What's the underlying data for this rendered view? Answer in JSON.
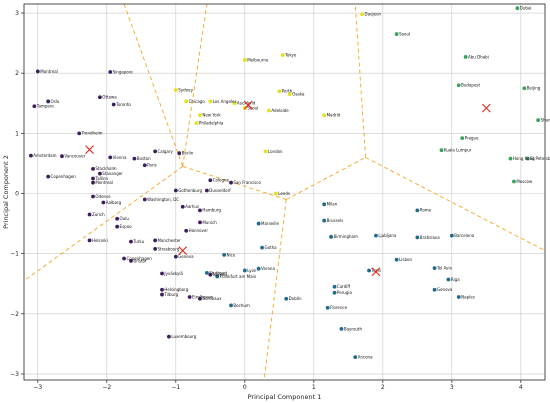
{
  "chart_data": {
    "type": "scatter",
    "xlabel": "Principal Component 1",
    "ylabel": "Principal Component 2",
    "xlim": [
      -3.2,
      4.35
    ],
    "ylim": [
      -3.1,
      3.15
    ],
    "xticks": [
      -3,
      -2,
      -1,
      0,
      1,
      2,
      3,
      4
    ],
    "yticks": [
      -3,
      -2,
      -1,
      0,
      1,
      2,
      3
    ],
    "grid": true,
    "colors": {
      "c0": "#3b1f5c",
      "c1": "#1f6b8c",
      "c2": "#e6e01c",
      "c3": "#3aa35a",
      "centroid": "#e0261c",
      "boundary": "#f5a623"
    },
    "centroids": [
      {
        "x": -2.25,
        "y": 0.73
      },
      {
        "x": -0.9,
        "y": -0.95
      },
      {
        "x": 0.05,
        "y": 1.47
      },
      {
        "x": 1.9,
        "y": -1.3
      },
      {
        "x": 3.5,
        "y": 1.42
      }
    ],
    "boundaries": [
      [
        [
          -1.75,
          3.15
        ],
        [
          -0.9,
          0.45
        ]
      ],
      [
        [
          -0.9,
          0.45
        ],
        [
          -3.2,
          -1.45
        ]
      ],
      [
        [
          -0.9,
          0.45
        ],
        [
          0.6,
          -0.1
        ]
      ],
      [
        [
          0.6,
          -0.1
        ],
        [
          0.28,
          -3.1
        ]
      ],
      [
        [
          0.6,
          -0.1
        ],
        [
          1.75,
          0.6
        ]
      ],
      [
        [
          1.75,
          0.6
        ],
        [
          1.6,
          3.15
        ]
      ],
      [
        [
          1.75,
          0.6
        ],
        [
          4.35,
          -0.95
        ]
      ],
      [
        [
          -0.9,
          0.45
        ],
        [
          -0.55,
          3.15
        ]
      ]
    ],
    "points": [
      {
        "name": "Montreal",
        "x": -3.0,
        "y": 2.03,
        "c": "c0"
      },
      {
        "name": "Singapore",
        "x": -1.95,
        "y": 2.02,
        "c": "c0"
      },
      {
        "name": "Oslo",
        "x": -2.85,
        "y": 1.53,
        "c": "c0"
      },
      {
        "name": "Tampere",
        "x": -3.05,
        "y": 1.45,
        "c": "c0"
      },
      {
        "name": "Ottawa",
        "x": -2.1,
        "y": 1.6,
        "c": "c0"
      },
      {
        "name": "Toronto",
        "x": -1.9,
        "y": 1.48,
        "c": "c0"
      },
      {
        "name": "Trondheim",
        "x": -2.4,
        "y": 1.0,
        "c": "c0"
      },
      {
        "name": "Amsterdam",
        "x": -3.1,
        "y": 0.63,
        "c": "c0"
      },
      {
        "name": "Vancouver",
        "x": -2.65,
        "y": 0.62,
        "c": "c0"
      },
      {
        "name": "Vienna",
        "x": -1.95,
        "y": 0.6,
        "c": "c0"
      },
      {
        "name": "Boston",
        "x": -1.6,
        "y": 0.58,
        "c": "c0"
      },
      {
        "name": "Calgary",
        "x": -1.3,
        "y": 0.7,
        "c": "c0"
      },
      {
        "name": "Stockholm",
        "x": -2.2,
        "y": 0.41,
        "c": "c0"
      },
      {
        "name": "Stavanger",
        "x": -2.1,
        "y": 0.33,
        "c": "c0"
      },
      {
        "name": "Tallinn",
        "x": -2.2,
        "y": 0.25,
        "c": "c0"
      },
      {
        "name": "Montreal",
        "x": -2.2,
        "y": 0.18,
        "c": "c0"
      },
      {
        "name": "Copenhagen",
        "x": -2.85,
        "y": 0.28,
        "c": "c0"
      },
      {
        "name": "Odense",
        "x": -2.2,
        "y": -0.05,
        "c": "c0"
      },
      {
        "name": "Paris",
        "x": -1.45,
        "y": 0.47,
        "c": "c0"
      },
      {
        "name": "Berlin",
        "x": -0.95,
        "y": 0.67,
        "c": "c0"
      },
      {
        "name": "Cologne",
        "x": -0.5,
        "y": 0.22,
        "c": "c0"
      },
      {
        "name": "San Francisco",
        "x": -0.2,
        "y": 0.18,
        "c": "c0"
      },
      {
        "name": "Gothenburg",
        "x": -1.0,
        "y": 0.05,
        "c": "c0"
      },
      {
        "name": "Dusseldorf",
        "x": -0.55,
        "y": 0.05,
        "c": "c0"
      },
      {
        "name": "Washington, DC",
        "x": -1.45,
        "y": -0.1,
        "c": "c0"
      },
      {
        "name": "Aalborg",
        "x": -2.05,
        "y": -0.15,
        "c": "c0"
      },
      {
        "name": "Zurich",
        "x": -2.25,
        "y": -0.35,
        "c": "c0"
      },
      {
        "name": "Aarhus",
        "x": -0.9,
        "y": -0.22,
        "c": "c0"
      },
      {
        "name": "Hamburg",
        "x": -0.65,
        "y": -0.28,
        "c": "c0"
      },
      {
        "name": "Oulu",
        "x": -1.85,
        "y": -0.42,
        "c": "c0"
      },
      {
        "name": "Espoo",
        "x": -1.85,
        "y": -0.55,
        "c": "c0"
      },
      {
        "name": "Munich",
        "x": -0.65,
        "y": -0.48,
        "c": "c0"
      },
      {
        "name": "Hannover",
        "x": -0.85,
        "y": -0.62,
        "c": "c0"
      },
      {
        "name": "Helsinki",
        "x": -2.25,
        "y": -0.78,
        "c": "c0"
      },
      {
        "name": "Turku",
        "x": -1.65,
        "y": -0.8,
        "c": "c0"
      },
      {
        "name": "Strasbourg",
        "x": -1.3,
        "y": -0.92,
        "c": "c0"
      },
      {
        "name": "Manchester",
        "x": -1.3,
        "y": -0.78,
        "c": "c0"
      },
      {
        "name": "Copenhagen",
        "x": -1.75,
        "y": -1.08,
        "c": "c0"
      },
      {
        "name": "Bristol",
        "x": -1.65,
        "y": -1.12,
        "c": "c0"
      },
      {
        "name": "Geneva",
        "x": -1.0,
        "y": -1.05,
        "c": "c0"
      },
      {
        "name": "Jyväskylä",
        "x": -1.2,
        "y": -1.33,
        "c": "c0"
      },
      {
        "name": "Helsingborg",
        "x": -1.2,
        "y": -1.6,
        "c": "c0"
      },
      {
        "name": "Tilburg",
        "x": -1.2,
        "y": -1.68,
        "c": "c0"
      },
      {
        "name": "Eindhoven",
        "x": -0.8,
        "y": -1.72,
        "c": "c0"
      },
      {
        "name": "Bordeaux",
        "x": -0.65,
        "y": -1.75,
        "c": "c0"
      },
      {
        "name": "Nantes",
        "x": -0.5,
        "y": -1.35,
        "c": "c0"
      },
      {
        "name": "Luxembourg",
        "x": -1.1,
        "y": -2.38,
        "c": "c0"
      },
      {
        "name": "Stuttgart",
        "x": -0.55,
        "y": -1.32,
        "c": "c1"
      },
      {
        "name": "Frankfurt am Main",
        "x": -0.4,
        "y": -1.38,
        "c": "c1"
      },
      {
        "name": "Nice",
        "x": -0.3,
        "y": -1.02,
        "c": "c1"
      },
      {
        "name": "Lyon",
        "x": 0.0,
        "y": -1.28,
        "c": "c1"
      },
      {
        "name": "Verona",
        "x": 0.2,
        "y": -1.25,
        "c": "c1"
      },
      {
        "name": "Bochum",
        "x": -0.2,
        "y": -1.86,
        "c": "c1"
      },
      {
        "name": "Marseille",
        "x": 0.2,
        "y": -0.5,
        "c": "c1"
      },
      {
        "name": "Gotha",
        "x": 0.25,
        "y": -0.9,
        "c": "c1"
      },
      {
        "name": "Dublin",
        "x": 0.6,
        "y": -1.75,
        "c": "c1"
      },
      {
        "name": "Milan",
        "x": 1.15,
        "y": -0.18,
        "c": "c1"
      },
      {
        "name": "Brussels",
        "x": 1.15,
        "y": -0.45,
        "c": "c1"
      },
      {
        "name": "Birmingham",
        "x": 1.25,
        "y": -0.72,
        "c": "c1"
      },
      {
        "name": "Ljubljana",
        "x": 1.9,
        "y": -0.7,
        "c": "c1"
      },
      {
        "name": "Bratislava",
        "x": 2.5,
        "y": -0.73,
        "c": "c1"
      },
      {
        "name": "Barcelona",
        "x": 3.0,
        "y": -0.7,
        "c": "c1"
      },
      {
        "name": "Rome",
        "x": 2.5,
        "y": -0.28,
        "c": "c1"
      },
      {
        "name": "Lisbon",
        "x": 2.2,
        "y": -1.1,
        "c": "c1"
      },
      {
        "name": "Tel Aviv",
        "x": 2.75,
        "y": -1.24,
        "c": "c1"
      },
      {
        "name": "Riga",
        "x": 2.95,
        "y": -1.43,
        "c": "c1"
      },
      {
        "name": "Genova",
        "x": 2.75,
        "y": -1.6,
        "c": "c1"
      },
      {
        "name": "Naples",
        "x": 3.1,
        "y": -1.72,
        "c": "c1"
      },
      {
        "name": "Turin",
        "x": 1.8,
        "y": -1.28,
        "c": "c1"
      },
      {
        "name": "Cardiff",
        "x": 1.3,
        "y": -1.55,
        "c": "c1"
      },
      {
        "name": "Perugia",
        "x": 1.3,
        "y": -1.65,
        "c": "c1"
      },
      {
        "name": "Florence",
        "x": 1.2,
        "y": -1.9,
        "c": "c1"
      },
      {
        "name": "Bayreuth",
        "x": 1.4,
        "y": -2.25,
        "c": "c1"
      },
      {
        "name": "Ancona",
        "x": 1.6,
        "y": -2.72,
        "c": "c1"
      },
      {
        "name": "Daejeon",
        "x": 1.7,
        "y": 2.98,
        "c": "c2"
      },
      {
        "name": "Tokyo",
        "x": 0.55,
        "y": 2.3,
        "c": "c2"
      },
      {
        "name": "Melbourne",
        "x": 0.0,
        "y": 2.22,
        "c": "c2"
      },
      {
        "name": "Sydney",
        "x": -1.0,
        "y": 1.72,
        "c": "c2"
      },
      {
        "name": "Chicago",
        "x": -0.85,
        "y": 1.53,
        "c": "c2"
      },
      {
        "name": "Los Angeles",
        "x": -0.5,
        "y": 1.53,
        "c": "c2"
      },
      {
        "name": "Auckland",
        "x": -0.15,
        "y": 1.5,
        "c": "c2"
      },
      {
        "name": "Seoul",
        "x": 0.0,
        "y": 1.42,
        "c": "c2"
      },
      {
        "name": "New York",
        "x": -0.65,
        "y": 1.3,
        "c": "c2"
      },
      {
        "name": "Philadelphia",
        "x": -0.7,
        "y": 1.17,
        "c": "c2"
      },
      {
        "name": "Perth",
        "x": 0.5,
        "y": 1.7,
        "c": "c2"
      },
      {
        "name": "Osaka",
        "x": 0.65,
        "y": 1.65,
        "c": "c2"
      },
      {
        "name": "Adelaide",
        "x": 0.35,
        "y": 1.38,
        "c": "c2"
      },
      {
        "name": "Madrid",
        "x": 1.15,
        "y": 1.3,
        "c": "c2"
      },
      {
        "name": "London",
        "x": 0.3,
        "y": 0.7,
        "c": "c2"
      },
      {
        "name": "Leeds",
        "x": 0.45,
        "y": 0.0,
        "c": "c2"
      },
      {
        "name": "Dubai",
        "x": 3.95,
        "y": 3.08,
        "c": "c3"
      },
      {
        "name": "Seoul",
        "x": 2.2,
        "y": 2.65,
        "c": "c3"
      },
      {
        "name": "Abu Dhabi",
        "x": 3.2,
        "y": 2.27,
        "c": "c3"
      },
      {
        "name": "Budapest",
        "x": 3.1,
        "y": 1.8,
        "c": "c3"
      },
      {
        "name": "Beijing",
        "x": 4.05,
        "y": 1.75,
        "c": "c3"
      },
      {
        "name": "Shanghai",
        "x": 4.25,
        "y": 1.22,
        "c": "c3"
      },
      {
        "name": "Prague",
        "x": 3.15,
        "y": 0.92,
        "c": "c3"
      },
      {
        "name": "Kuala Lumpur",
        "x": 2.85,
        "y": 0.72,
        "c": "c3"
      },
      {
        "name": "Hong Kong",
        "x": 3.85,
        "y": 0.58,
        "c": "c3"
      },
      {
        "name": "St Petersburg",
        "x": 4.1,
        "y": 0.58,
        "c": "c3"
      },
      {
        "name": "Moscow",
        "x": 3.9,
        "y": 0.2,
        "c": "c3"
      }
    ]
  }
}
